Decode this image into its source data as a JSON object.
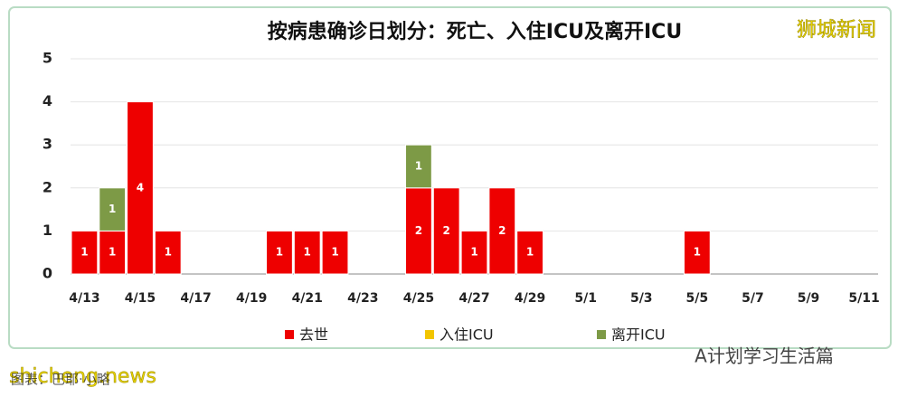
{
  "chart_data": {
    "type": "stacked_bar",
    "title": "按病患确诊日划分：死亡、入住ICU及离开ICU",
    "categories": [
      "4/13",
      null,
      "4/15",
      null,
      "4/17",
      null,
      "4/19",
      null,
      "4/21",
      null,
      "4/23",
      null,
      "4/25",
      null,
      "4/27",
      null,
      "4/29",
      null,
      "5/1",
      null,
      "5/3",
      null,
      "5/5",
      null,
      "5/7",
      null,
      "5/9",
      null,
      "5/11"
    ],
    "series": [
      {
        "name": "去世",
        "color": "#ee0000",
        "values": [
          1,
          1,
          4,
          1,
          0,
          0,
          0,
          1,
          1,
          1,
          0,
          0,
          2,
          2,
          1,
          2,
          1,
          0,
          0,
          0,
          0,
          0,
          1,
          0,
          0,
          0,
          0,
          0,
          0
        ]
      },
      {
        "name": "入住ICU",
        "color": "#f2c500",
        "values": [
          0,
          0,
          0,
          0,
          0,
          0,
          0,
          0,
          0,
          0,
          0,
          0,
          0,
          0,
          0,
          0,
          0,
          0,
          0,
          0,
          0,
          0,
          0,
          0,
          0,
          0,
          0,
          0,
          0
        ]
      },
      {
        "name": "离开ICU",
        "color": "#7d9a46",
        "values": [
          0,
          1,
          0,
          0,
          0,
          0,
          0,
          0,
          0,
          0,
          0,
          0,
          1,
          0,
          0,
          0,
          0,
          0,
          0,
          0,
          0,
          0,
          0,
          0,
          0,
          0,
          0,
          0,
          0
        ]
      }
    ],
    "ylim": [
      0,
      5
    ],
    "yticks": [
      0,
      1,
      2,
      3,
      4,
      5
    ],
    "grid": true
  },
  "watermarks": {
    "top_right": "狮城新闻",
    "bottom_right": "A计划学习生活篇",
    "bottom_left": "shicheng.news",
    "caption": "图表：巴耶·小略"
  }
}
